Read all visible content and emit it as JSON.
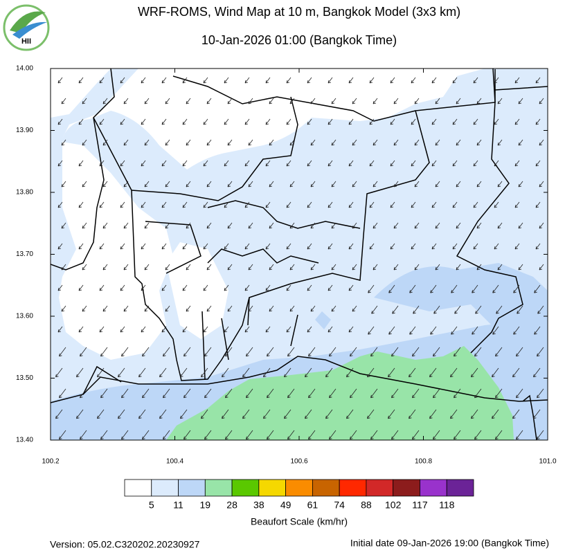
{
  "header": {
    "logo": "HII",
    "title": "WRF-ROMS, Wind Map at 10 m, Bangkok Model (3x3 km)",
    "subtitle": "10-Jan-2026 01:00 (Bangkok Time)"
  },
  "map": {
    "xlim": [
      100.2,
      101.0
    ],
    "ylim": [
      13.4,
      14.0
    ],
    "xticks": [
      100.2,
      100.4,
      100.6,
      100.8,
      {
        "value": 101.0,
        "label": "101.0"
      }
    ],
    "yticks": [
      {
        "value": 13.4,
        "label": "13.40"
      },
      {
        "value": 13.5,
        "label": "13.50"
      },
      {
        "value": 13.6,
        "label": "13.60"
      },
      {
        "value": 13.7,
        "label": "13.70"
      },
      {
        "value": 13.8,
        "label": "13.80"
      },
      {
        "value": 13.9,
        "label": "13.90"
      },
      {
        "value": 14.0,
        "label": "14.00"
      }
    ]
  },
  "legend": {
    "title": "Beaufort Scale (km/hr)",
    "colors": [
      "#ffffff",
      "#dcebfc",
      "#bdd7f7",
      "#98e4a8",
      "#5ac800",
      "#f5d800",
      "#fa8c00",
      "#c86400",
      "#ff2800",
      "#d22828",
      "#8c1c1c",
      "#9932cc",
      "#6b2397"
    ],
    "labels": [
      5,
      11,
      19,
      28,
      38,
      49,
      61,
      74,
      88,
      102,
      117,
      118
    ]
  },
  "footer": {
    "version": "Version: 05.02.C320202.20230927",
    "initial_date": "Initial date 09-Jan-2026 19:00 (Bangkok Time)"
  }
}
